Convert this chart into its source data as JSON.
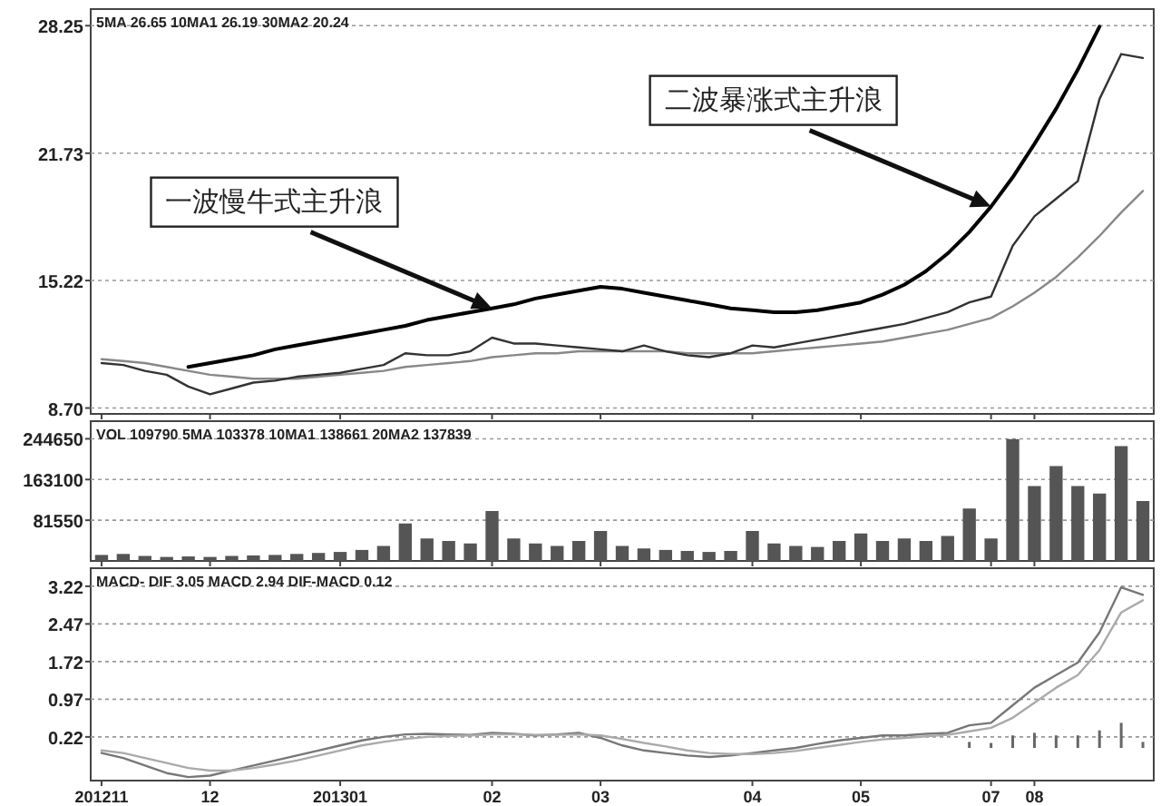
{
  "chart_data": [
    {
      "type": "line",
      "title": "5MA 26.65 10MA1 26.19 30MA2 20.24",
      "grid": "y",
      "tick_labels": "y",
      "categories": [
        "201211",
        null,
        null,
        null,
        null,
        "12",
        null,
        null,
        null,
        null,
        null,
        "201301",
        null,
        null,
        null,
        null,
        null,
        null,
        "02",
        null,
        null,
        null,
        null,
        "03",
        null,
        null,
        null,
        null,
        null,
        null,
        "04",
        null,
        null,
        null,
        null,
        "05",
        null,
        null,
        null,
        null,
        null,
        "07",
        null,
        "08",
        null,
        null,
        null,
        null,
        null
      ],
      "ylim": [
        8.4,
        29.1
      ],
      "yticks": [
        {
          "value": 8.7,
          "label": "8.70"
        },
        15.22,
        21.73,
        28.25
      ],
      "series": [
        {
          "color": "#888888",
          "values": [
            11.2,
            11.1,
            11.0,
            10.8,
            10.6,
            10.4,
            10.3,
            10.2,
            10.2,
            10.2,
            10.3,
            10.4,
            10.5,
            10.6,
            10.8,
            10.9,
            11.0,
            11.1,
            11.3,
            11.4,
            11.5,
            11.5,
            11.6,
            11.6,
            11.6,
            11.6,
            11.6,
            11.5,
            11.5,
            11.5,
            11.5,
            11.6,
            11.7,
            11.8,
            11.9,
            12.0,
            12.1,
            12.3,
            12.5,
            12.7,
            13.0,
            13.3,
            13.9,
            14.6,
            15.4,
            16.4,
            17.5,
            18.7,
            19.8
          ]
        },
        {
          "color": "#333333",
          "values": [
            11.0,
            10.9,
            10.6,
            10.4,
            9.8,
            9.4,
            9.7,
            10.0,
            10.1,
            10.3,
            10.4,
            10.5,
            10.7,
            10.9,
            11.5,
            11.4,
            11.4,
            11.6,
            12.3,
            12.0,
            12.0,
            11.9,
            11.8,
            11.7,
            11.6,
            11.9,
            11.6,
            11.4,
            11.3,
            11.5,
            11.9,
            11.8,
            12.0,
            12.2,
            12.4,
            12.6,
            12.8,
            13.0,
            13.3,
            13.6,
            14.1,
            14.4,
            17.0,
            18.5,
            19.4,
            20.3,
            24.5,
            26.8,
            26.6
          ]
        },
        {
          "color": "#000000",
          "values": [
            null,
            null,
            null,
            null,
            10.8,
            11.0,
            11.2,
            11.4,
            11.7,
            11.9,
            12.1,
            12.3,
            12.5,
            12.7,
            12.9,
            13.2,
            13.4,
            13.6,
            13.8,
            14.0,
            14.3,
            14.5,
            14.7,
            14.9,
            14.8,
            14.6,
            14.4,
            14.2,
            14.0,
            13.8,
            13.7,
            13.6,
            13.6,
            13.7,
            13.9,
            14.1,
            14.5,
            15.0,
            15.7,
            16.6,
            17.7,
            19.0,
            20.5,
            22.2,
            24.0,
            26.0,
            28.2,
            null,
            null
          ]
        }
      ],
      "annotations": [
        {
          "text": "一波慢牛式主升浪",
          "x": "02",
          "y": 13.8
        },
        {
          "text": "二波暴涨式主升浪",
          "x": "07",
          "y": 19.0
        }
      ]
    },
    {
      "type": "bar",
      "title": "VOL 109790 5MA 103378 10MA1 138661 20MA2 137839",
      "grid": "y",
      "tick_labels": "y",
      "categories": [
        "201211",
        null,
        null,
        null,
        null,
        "12",
        null,
        null,
        null,
        null,
        null,
        "201301",
        null,
        null,
        null,
        null,
        null,
        null,
        "02",
        null,
        null,
        null,
        null,
        "03",
        null,
        null,
        null,
        null,
        null,
        null,
        "04",
        null,
        null,
        null,
        null,
        "05",
        null,
        null,
        null,
        null,
        null,
        "07",
        null,
        "08",
        null,
        null,
        null,
        null,
        null
      ],
      "ylim": [
        0,
        280000
      ],
      "yticks": [
        81550,
        163100,
        244650
      ],
      "series": [
        {
          "color": "#555555",
          "values": [
            12000,
            14000,
            10000,
            8000,
            9000,
            8000,
            10000,
            11000,
            12000,
            14000,
            16000,
            18000,
            22000,
            30000,
            75000,
            45000,
            40000,
            35000,
            100000,
            45000,
            35000,
            30000,
            40000,
            60000,
            30000,
            25000,
            22000,
            20000,
            18000,
            20000,
            60000,
            35000,
            30000,
            28000,
            40000,
            55000,
            40000,
            45000,
            40000,
            50000,
            105000,
            45000,
            244000,
            150000,
            190000,
            150000,
            135000,
            230000,
            120000
          ]
        }
      ]
    },
    {
      "type": "line",
      "title": "MACD- DIF 3.05 MACD 2.94 DIF-MACD 0.12",
      "grid": "y",
      "categories": [
        "201211",
        null,
        null,
        null,
        null,
        "12",
        null,
        null,
        null,
        null,
        null,
        "201301",
        null,
        null,
        null,
        null,
        null,
        null,
        "02",
        null,
        null,
        null,
        null,
        "03",
        null,
        null,
        null,
        null,
        null,
        null,
        "04",
        null,
        null,
        null,
        null,
        "05",
        null,
        null,
        null,
        null,
        null,
        "07",
        null,
        "08",
        null,
        null,
        null,
        null,
        null
      ],
      "ylim": [
        -0.65,
        3.58
      ],
      "yticks": [
        0.22,
        0.97,
        1.72,
        2.47,
        3.22
      ],
      "series": [
        {
          "type": "bar",
          "color": "#666666",
          "values": [
            null,
            null,
            null,
            null,
            null,
            null,
            null,
            null,
            null,
            null,
            null,
            null,
            null,
            null,
            null,
            null,
            null,
            null,
            null,
            null,
            null,
            null,
            null,
            null,
            null,
            null,
            null,
            null,
            null,
            null,
            null,
            null,
            null,
            null,
            null,
            null,
            null,
            null,
            null,
            null,
            0.12,
            0.1,
            0.25,
            0.3,
            0.25,
            0.25,
            0.35,
            0.5,
            0.12
          ]
        },
        {
          "color": "#777777",
          "values": [
            -0.1,
            -0.2,
            -0.35,
            -0.5,
            -0.58,
            -0.55,
            -0.45,
            -0.35,
            -0.25,
            -0.15,
            -0.05,
            0.05,
            0.15,
            0.22,
            0.27,
            0.28,
            0.27,
            0.26,
            0.3,
            0.28,
            0.25,
            0.27,
            0.3,
            0.2,
            0.05,
            -0.05,
            -0.1,
            -0.15,
            -0.18,
            -0.15,
            -0.1,
            -0.05,
            0.0,
            0.08,
            0.15,
            0.2,
            0.25,
            0.25,
            0.28,
            0.3,
            0.45,
            0.5,
            0.85,
            1.2,
            1.45,
            1.7,
            2.3,
            3.2,
            3.05
          ]
        },
        {
          "color": "#aaaaaa",
          "values": [
            -0.05,
            -0.1,
            -0.2,
            -0.3,
            -0.4,
            -0.45,
            -0.45,
            -0.4,
            -0.33,
            -0.25,
            -0.15,
            -0.05,
            0.05,
            0.12,
            0.18,
            0.22,
            0.24,
            0.25,
            0.27,
            0.27,
            0.26,
            0.26,
            0.27,
            0.25,
            0.18,
            0.1,
            0.03,
            -0.05,
            -0.1,
            -0.12,
            -0.12,
            -0.1,
            -0.06,
            0.0,
            0.06,
            0.12,
            0.17,
            0.2,
            0.23,
            0.26,
            0.33,
            0.4,
            0.6,
            0.9,
            1.2,
            1.45,
            1.95,
            2.7,
            2.94
          ]
        }
      ]
    }
  ]
}
